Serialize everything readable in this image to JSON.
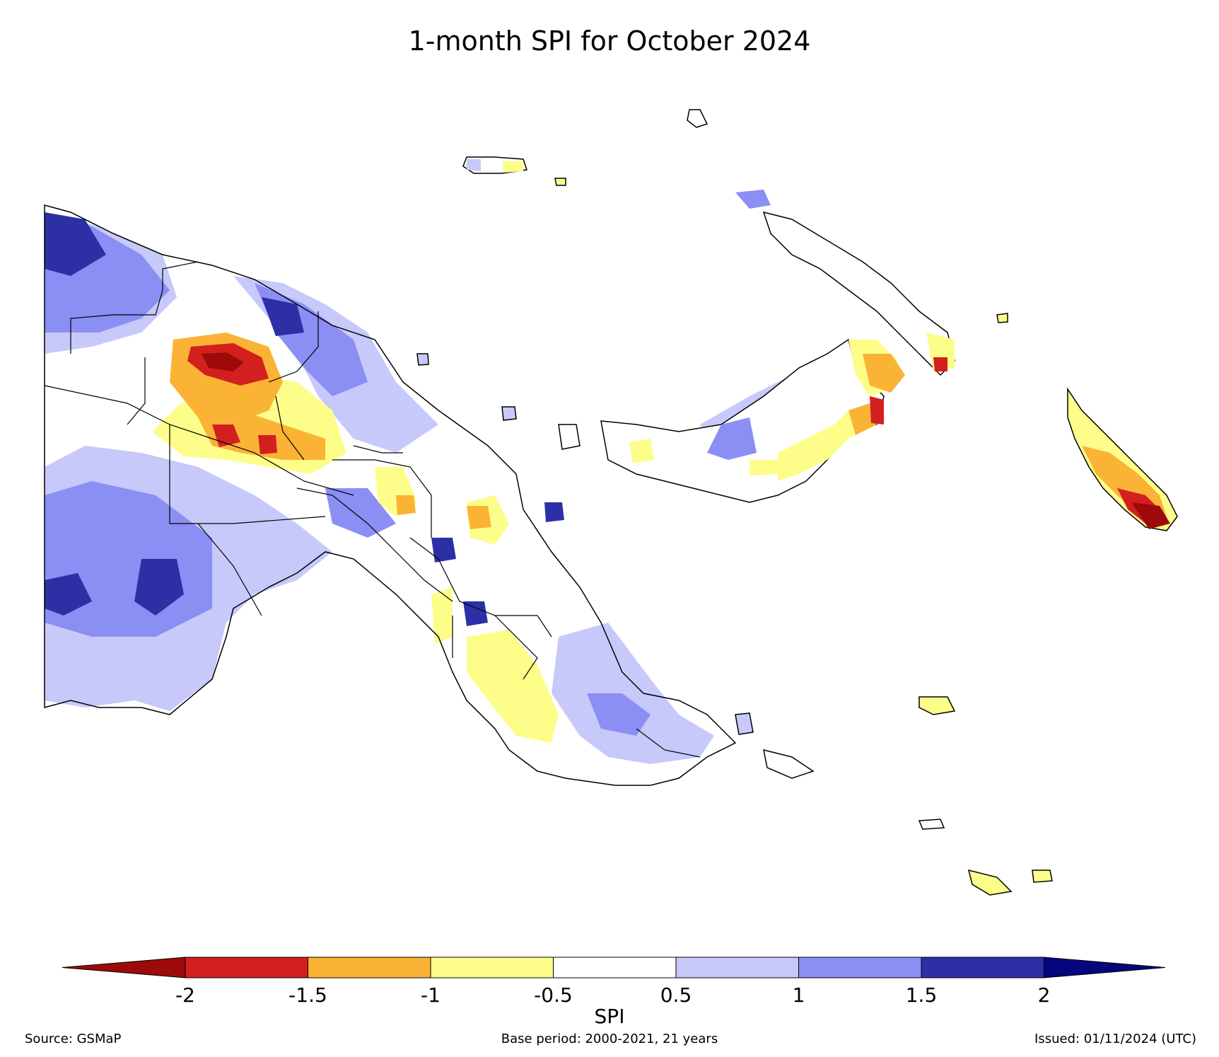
{
  "title": "1-month SPI for October 2024",
  "colorbar": {
    "label": "SPI",
    "ticks": [
      "-2",
      "-1.5",
      "-1",
      "-0.5",
      "0.5",
      "1",
      "1.5",
      "2"
    ],
    "colors": [
      "#9e0a0a",
      "#d41f1f",
      "#fbb335",
      "#fdfd8a",
      "#ffffff",
      "#c7c9fb",
      "#8b8ef3",
      "#2d30a4",
      "#05057e"
    ]
  },
  "footer": {
    "source": "Source: GSMaP",
    "base_period": "Base period: 2000-2021, 21 years",
    "issued": "Issued: 01/11/2024 (UTC)"
  },
  "map": {
    "region": "Papua New Guinea",
    "variable": "1-month SPI"
  }
}
